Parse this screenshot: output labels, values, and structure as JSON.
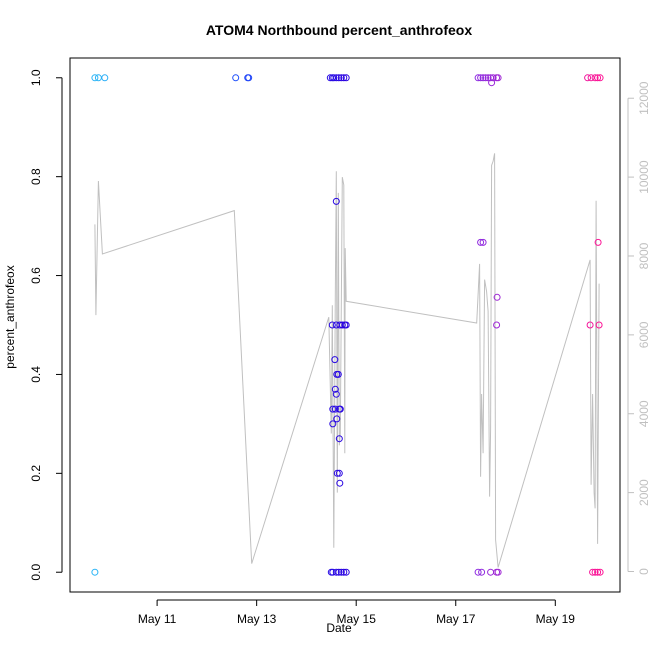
{
  "chart_data": {
    "type": "scatter",
    "title": "ATOM4 Northbound percent_anthrofeox",
    "xlabel": "Date",
    "ylabel": "percent_anthrofeox",
    "xlim": [
      9.25,
      20.3
    ],
    "ylim": [
      -0.04,
      1.04
    ],
    "y2lim": [
      -520,
      13020
    ],
    "x_ticks": [
      {
        "value": 11,
        "label": "May 11"
      },
      {
        "value": 13,
        "label": "May 13"
      },
      {
        "value": 15,
        "label": "May 15"
      },
      {
        "value": 17,
        "label": "May 17"
      },
      {
        "value": 19,
        "label": "May 19"
      }
    ],
    "y_ticks": [
      {
        "value": 0.0,
        "label": "0.0"
      },
      {
        "value": 0.2,
        "label": "0.2"
      },
      {
        "value": 0.4,
        "label": "0.4"
      },
      {
        "value": 0.6,
        "label": "0.6"
      },
      {
        "value": 0.8,
        "label": "0.8"
      },
      {
        "value": 1.0,
        "label": "1.0"
      }
    ],
    "y2_ticks": [
      {
        "value": 0,
        "label": "0"
      },
      {
        "value": 2000,
        "label": "2000"
      },
      {
        "value": 4000,
        "label": "4000"
      },
      {
        "value": 6000,
        "label": "6000"
      },
      {
        "value": 8000,
        "label": "8000"
      },
      {
        "value": 10000,
        "label": "10000"
      },
      {
        "value": 12000,
        "label": "12000"
      }
    ],
    "series": [
      {
        "name": "percent_anthrofeox",
        "marker": "open-circle",
        "color_scale": [
          "#29b6f6",
          "#1e5bff",
          "#2a00e0",
          "#8a2be2",
          "#ff1493"
        ],
        "points": [
          [
            9.75,
            1.0
          ],
          [
            9.82,
            1.0
          ],
          [
            9.95,
            1.0
          ],
          [
            9.75,
            0.0
          ],
          [
            12.58,
            1.0
          ],
          [
            12.82,
            1.0
          ],
          [
            12.84,
            1.0
          ],
          [
            14.48,
            1.0
          ],
          [
            14.52,
            1.0
          ],
          [
            14.55,
            1.0
          ],
          [
            14.6,
            1.0
          ],
          [
            14.65,
            1.0
          ],
          [
            14.7,
            1.0
          ],
          [
            14.75,
            1.0
          ],
          [
            14.8,
            1.0
          ],
          [
            14.52,
            0.5
          ],
          [
            14.6,
            0.5
          ],
          [
            14.67,
            0.5
          ],
          [
            14.72,
            0.5
          ],
          [
            14.77,
            0.5
          ],
          [
            14.8,
            0.5
          ],
          [
            14.6,
            0.75
          ],
          [
            14.57,
            0.43
          ],
          [
            14.61,
            0.4
          ],
          [
            14.64,
            0.4
          ],
          [
            14.58,
            0.37
          ],
          [
            14.6,
            0.36
          ],
          [
            14.53,
            0.33
          ],
          [
            14.58,
            0.33
          ],
          [
            14.66,
            0.33
          ],
          [
            14.68,
            0.33
          ],
          [
            14.61,
            0.31
          ],
          [
            14.53,
            0.3
          ],
          [
            14.66,
            0.27
          ],
          [
            14.62,
            0.2
          ],
          [
            14.66,
            0.2
          ],
          [
            14.67,
            0.18
          ],
          [
            14.5,
            0.0
          ],
          [
            14.53,
            0.0
          ],
          [
            14.6,
            0.0
          ],
          [
            14.65,
            0.0
          ],
          [
            14.7,
            0.0
          ],
          [
            14.75,
            0.0
          ],
          [
            14.8,
            0.0
          ],
          [
            17.45,
            1.0
          ],
          [
            17.5,
            1.0
          ],
          [
            17.55,
            1.0
          ],
          [
            17.6,
            1.0
          ],
          [
            17.65,
            1.0
          ],
          [
            17.7,
            1.0
          ],
          [
            17.75,
            1.0
          ],
          [
            17.82,
            1.0
          ],
          [
            17.85,
            1.0
          ],
          [
            17.72,
            0.99
          ],
          [
            17.5,
            0.667
          ],
          [
            17.55,
            0.667
          ],
          [
            17.83,
            0.556
          ],
          [
            17.82,
            0.5
          ],
          [
            17.45,
            0.0
          ],
          [
            17.52,
            0.0
          ],
          [
            17.7,
            0.0
          ],
          [
            17.82,
            0.0
          ],
          [
            17.85,
            0.0
          ],
          [
            19.65,
            1.0
          ],
          [
            19.72,
            1.0
          ],
          [
            19.8,
            1.0
          ],
          [
            19.85,
            1.0
          ],
          [
            19.9,
            1.0
          ],
          [
            19.86,
            0.667
          ],
          [
            19.7,
            0.5
          ],
          [
            19.88,
            0.5
          ],
          [
            19.75,
            0.0
          ],
          [
            19.8,
            0.0
          ],
          [
            19.85,
            0.0
          ],
          [
            19.9,
            0.0
          ]
        ]
      },
      {
        "name": "secondary (right axis)",
        "color": "#c0c0c0",
        "axis": "right",
        "line": [
          [
            9.75,
            8800
          ],
          [
            9.77,
            6500
          ],
          [
            9.82,
            9900
          ],
          [
            9.9,
            8050
          ],
          [
            12.55,
            9150
          ],
          [
            12.9,
            200
          ],
          [
            14.45,
            6450
          ],
          [
            14.5,
            3500
          ],
          [
            14.52,
            6750
          ],
          [
            14.55,
            600
          ],
          [
            14.58,
            7000
          ],
          [
            14.6,
            10150
          ],
          [
            14.62,
            2000
          ],
          [
            14.64,
            9600
          ],
          [
            14.66,
            3200
          ],
          [
            14.68,
            3500
          ],
          [
            14.72,
            10000
          ],
          [
            14.75,
            9800
          ],
          [
            14.77,
            3000
          ],
          [
            14.78,
            8200
          ],
          [
            14.8,
            6850
          ],
          [
            17.42,
            6300
          ],
          [
            17.48,
            7800
          ],
          [
            17.5,
            2400
          ],
          [
            17.52,
            4500
          ],
          [
            17.55,
            3000
          ],
          [
            17.58,
            7400
          ],
          [
            17.62,
            7100
          ],
          [
            17.65,
            6600
          ],
          [
            17.68,
            1900
          ],
          [
            17.7,
            3600
          ],
          [
            17.72,
            10300
          ],
          [
            17.75,
            10400
          ],
          [
            17.78,
            10600
          ],
          [
            17.8,
            800
          ],
          [
            17.85,
            100
          ],
          [
            19.7,
            7900
          ],
          [
            19.72,
            2200
          ],
          [
            19.75,
            4500
          ],
          [
            19.78,
            2000
          ],
          [
            19.8,
            1600
          ],
          [
            19.82,
            9400
          ],
          [
            19.85,
            700
          ],
          [
            19.88,
            7300
          ]
        ]
      }
    ],
    "grid": false,
    "legend": "none"
  }
}
